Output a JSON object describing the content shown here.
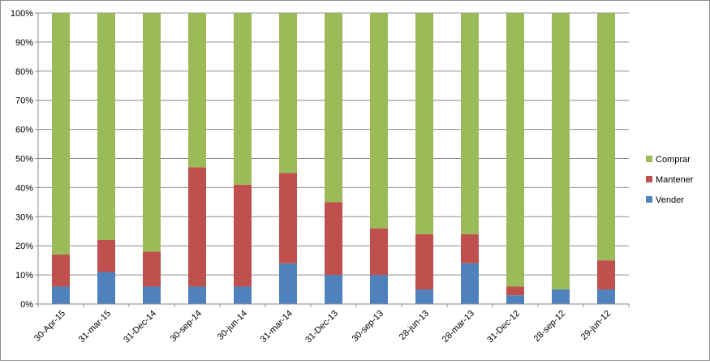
{
  "chart_data": {
    "type": "bar",
    "stacked": true,
    "percent_stacked": true,
    "categories": [
      "30-Apr-15",
      "31-mar-15",
      "31-Dec-14",
      "30-sep-14",
      "30-jun-14",
      "31-mar-14",
      "31-Dec-13",
      "30-sep-13",
      "28-jun-13",
      "28-mar-13",
      "31-Dec-12",
      "28-sep-12",
      "29-jun-12"
    ],
    "series": [
      {
        "name": "Vender",
        "color": "#4f81bd",
        "values": [
          6,
          11,
          6,
          6,
          6,
          14,
          10,
          10,
          5,
          14,
          3,
          5,
          5
        ]
      },
      {
        "name": "Mantener",
        "color": "#c0504d",
        "values": [
          11,
          11,
          12,
          41,
          35,
          31,
          25,
          16,
          19,
          10,
          3,
          0,
          10
        ]
      },
      {
        "name": "Comprar",
        "color": "#9bbb59",
        "values": [
          83,
          78,
          82,
          53,
          59,
          55,
          65,
          74,
          76,
          76,
          94,
          95,
          85
        ]
      }
    ],
    "y_ticks": [
      "0%",
      "10%",
      "20%",
      "30%",
      "40%",
      "50%",
      "60%",
      "70%",
      "80%",
      "90%",
      "100%"
    ],
    "ylim": [
      0,
      100
    ],
    "grid": true,
    "legend_position": "right",
    "legend_order": [
      "Comprar",
      "Mantener",
      "Vender"
    ],
    "title": "",
    "xlabel": "",
    "ylabel": ""
  }
}
